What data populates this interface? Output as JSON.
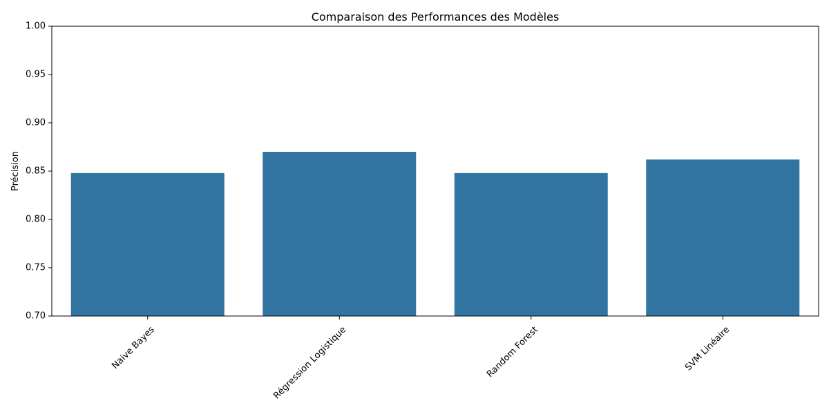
{
  "chart_data": {
    "type": "bar",
    "title": "Comparaison des Performances des Modèles",
    "xlabel": "",
    "ylabel": "Précision",
    "categories": [
      "Naive Bayes",
      "Régression Logistique",
      "Random Forest",
      "SVM Linéaire"
    ],
    "values": [
      0.848,
      0.87,
      0.848,
      0.862
    ],
    "ylim": [
      0.7,
      1.0
    ],
    "yticks": [
      "0.70",
      "0.75",
      "0.80",
      "0.85",
      "0.90",
      "0.95",
      "1.00"
    ],
    "bar_color": "#3274a1",
    "grid": false,
    "legend": "none",
    "xtick_rotation_deg": 45
  }
}
